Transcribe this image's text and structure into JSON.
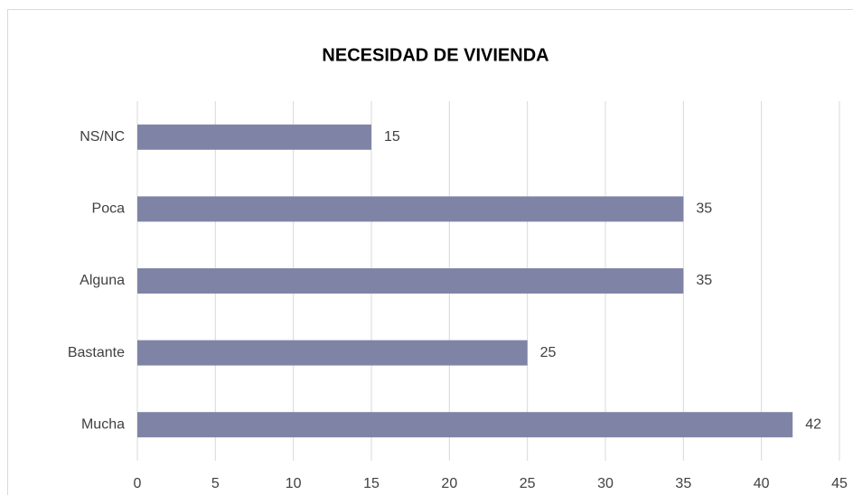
{
  "chart_data": {
    "type": "bar",
    "orientation": "horizontal",
    "title": "NECESIDAD DE VIVIENDA",
    "categories": [
      "NS/NC",
      "Poca",
      "Alguna",
      "Bastante",
      "Mucha"
    ],
    "values": [
      15,
      35,
      35,
      25,
      42
    ],
    "color": "#7f84a6",
    "xlim": [
      0,
      45
    ],
    "xticks": [
      0,
      5,
      10,
      15,
      20,
      25,
      30,
      35,
      40,
      45
    ],
    "grid": true
  }
}
